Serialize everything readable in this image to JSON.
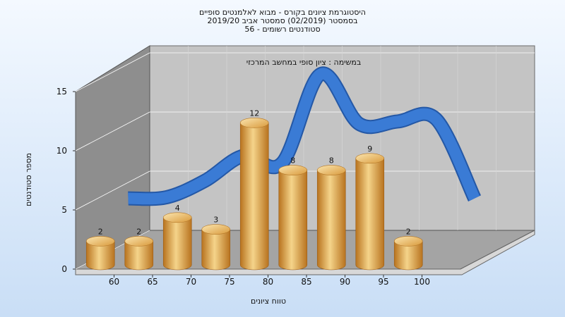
{
  "title_lines": [
    "היסטוגרמת ציונים בקורס - מבוא לאלמנטים סופיים",
    "בסמסטר  (02/2019)  סמסטר אביב 2019/20",
    "סטודנטים רשומים - 56"
  ],
  "chart_data": {
    "type": "bar",
    "subtitle": "במשימה : ציון סופי במחשב המרכזי",
    "xlabel": "טווח ציונים",
    "ylabel": "מספר סטודנטים",
    "x_ticks": [
      "60",
      "65",
      "70",
      "75",
      "80",
      "85",
      "90",
      "95",
      "100"
    ],
    "y_ticks": [
      "0",
      "5",
      "10",
      "15"
    ],
    "ylim": [
      0,
      15
    ],
    "grid": true,
    "bars": [
      {
        "x": 57.5,
        "value": 2
      },
      {
        "x": 62.5,
        "value": 2
      },
      {
        "x": 67.5,
        "value": 4
      },
      {
        "x": 72.5,
        "value": 3
      },
      {
        "x": 77.5,
        "value": 12
      },
      {
        "x": 82.5,
        "value": 8
      },
      {
        "x": 87.5,
        "value": 8
      },
      {
        "x": 92.5,
        "value": 9
      },
      {
        "x": 97.5,
        "value": 2
      }
    ],
    "curve": [
      {
        "x": 57.5,
        "value": 4.5
      },
      {
        "x": 62.5,
        "value": 4.6
      },
      {
        "x": 67.5,
        "value": 6.0
      },
      {
        "x": 72.5,
        "value": 8.1
      },
      {
        "x": 77.5,
        "value": 7.5
      },
      {
        "x": 82.5,
        "value": 15.0
      },
      {
        "x": 87.5,
        "value": 10.8
      },
      {
        "x": 92.5,
        "value": 11.0
      },
      {
        "x": 97.5,
        "value": 11.2
      },
      {
        "x": 102.5,
        "value": 4.5
      }
    ],
    "colors": {
      "bar_light": "#f5d48a",
      "bar_mid": "#e2a240",
      "bar_dark": "#b8731f",
      "curve": "#3a7bd5",
      "curve_dark": "#2458a6",
      "back_wall": "#c4c4c4",
      "side_wall": "#8e8e8e",
      "floor": "#a4a4a4"
    }
  }
}
